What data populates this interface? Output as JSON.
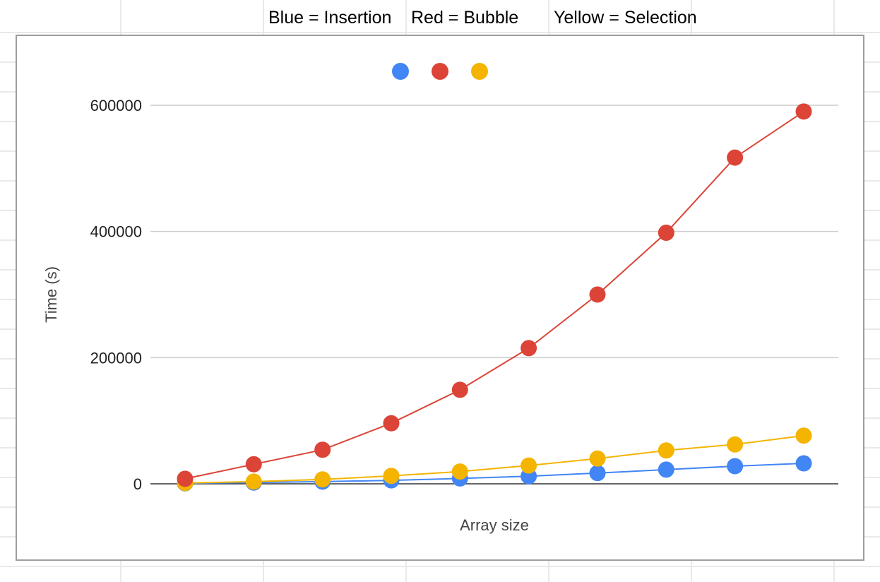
{
  "header": {
    "cells": [
      "Blue = Insertion",
      "Red = Bubble",
      "Yellow = Selection"
    ]
  },
  "chart_data": {
    "type": "line",
    "title": "",
    "xlabel": "Array size",
    "ylabel": "Time (s)",
    "ylim": [
      0,
      600000
    ],
    "yticks": [
      0,
      200000,
      400000,
      600000
    ],
    "ytick_labels": [
      "0",
      "200000",
      "400000",
      "600000"
    ],
    "x": [
      1,
      2,
      3,
      4,
      5,
      6,
      7,
      8,
      9,
      10
    ],
    "grid": true,
    "legend": "top-center",
    "series": [
      {
        "color": "#4285f4",
        "values": [
          800,
          2000,
          3500,
          5500,
          8500,
          12000,
          17000,
          22500,
          28000,
          32500
        ]
      },
      {
        "color": "#db4437",
        "values": [
          8000,
          31000,
          54000,
          96000,
          149000,
          215000,
          300000,
          398000,
          517000,
          590000
        ]
      },
      {
        "color": "#f4b400",
        "values": [
          1200,
          3500,
          7000,
          12500,
          19500,
          29000,
          40000,
          53000,
          62500,
          76500
        ]
      }
    ]
  }
}
